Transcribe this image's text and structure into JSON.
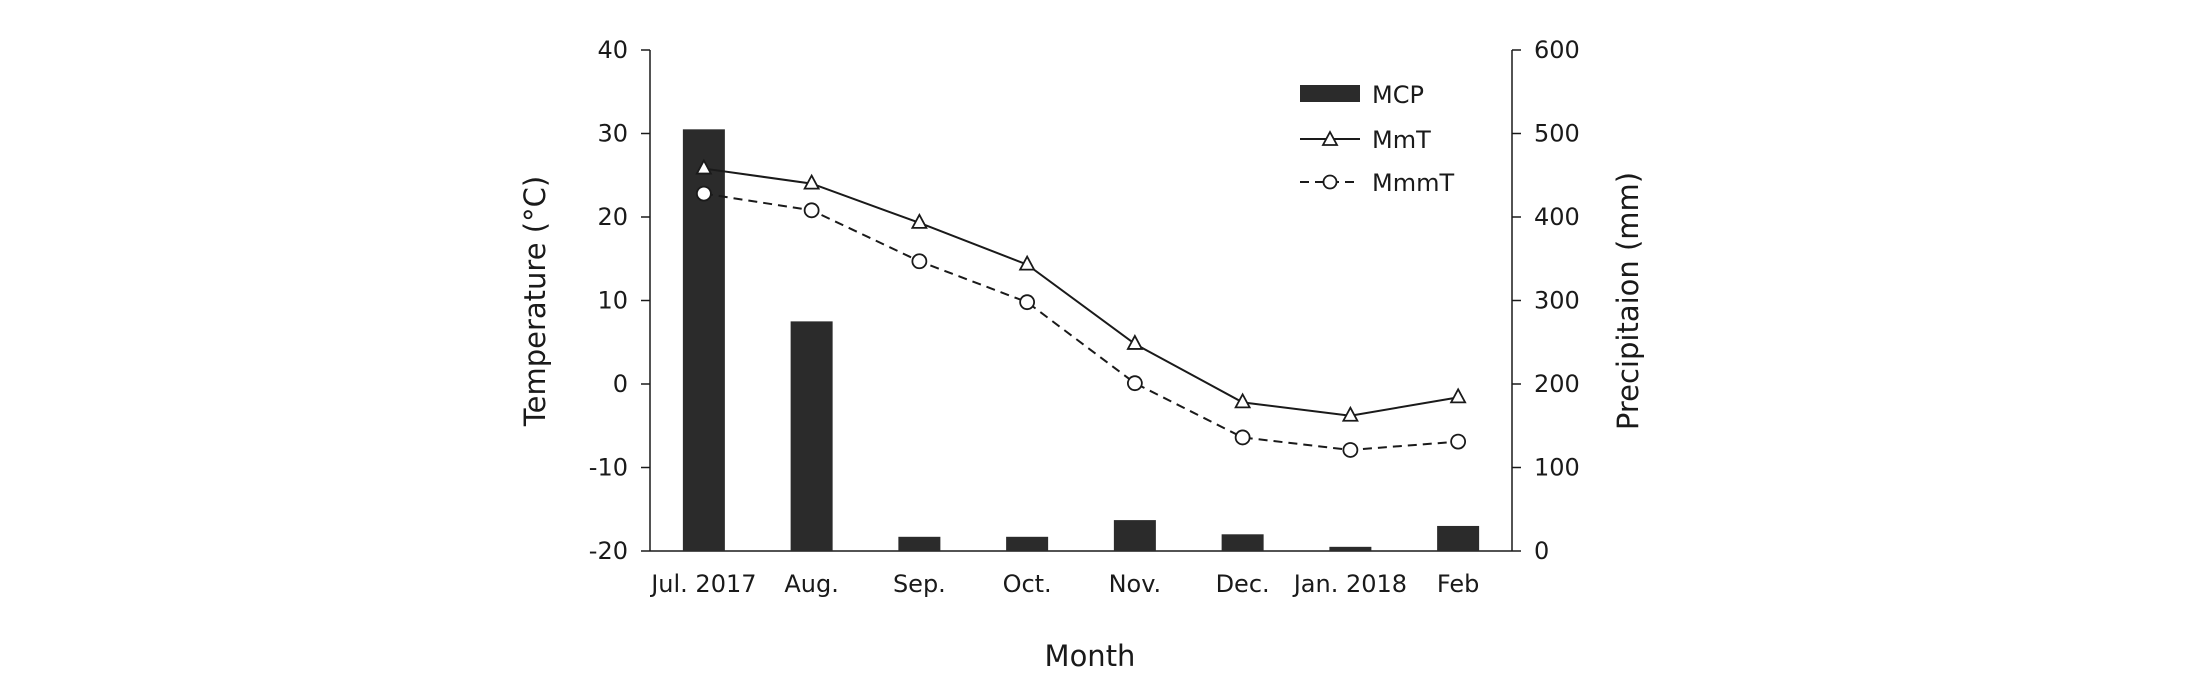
{
  "chart_data": {
    "type": "bar+line",
    "categories": [
      "Jul. 2017",
      "Aug.",
      "Sep.",
      "Oct.",
      "Nov.",
      "Dec.",
      "Jan. 2018",
      "Feb"
    ],
    "xlabel": "Month",
    "ylabel_left": "Temperature (°C)",
    "ylabel_right": "Precipitaion (mm)",
    "ylim_left": [
      -20,
      40
    ],
    "ylim_right": [
      0,
      600
    ],
    "yticks_left": [
      "-20",
      "-10",
      "0",
      "10",
      "20",
      "30",
      "40"
    ],
    "yticks_right": [
      "0",
      "100",
      "200",
      "300",
      "400",
      "500",
      "600"
    ],
    "series": [
      {
        "name": "MCP",
        "kind": "bar",
        "axis": "right",
        "color": "#2b2b2b",
        "values": [
          505,
          275,
          17,
          17,
          37,
          20,
          5,
          30
        ]
      },
      {
        "name": "MmT",
        "kind": "line",
        "axis": "left",
        "marker": "triangle",
        "dash": "solid",
        "color": "#1a1a1a",
        "values": [
          25.8,
          24.0,
          19.3,
          14.3,
          4.8,
          -2.2,
          -3.8,
          -1.6
        ]
      },
      {
        "name": "MmmT",
        "kind": "line",
        "axis": "left",
        "marker": "circle",
        "dash": "dashed",
        "color": "#1a1a1a",
        "values": [
          22.8,
          20.8,
          14.7,
          9.8,
          0.1,
          -6.4,
          -7.9,
          -6.9
        ]
      }
    ],
    "legend": [
      "MCP",
      "MmT",
      "MmmT"
    ],
    "legend_position": "top-right",
    "grid": false
  }
}
